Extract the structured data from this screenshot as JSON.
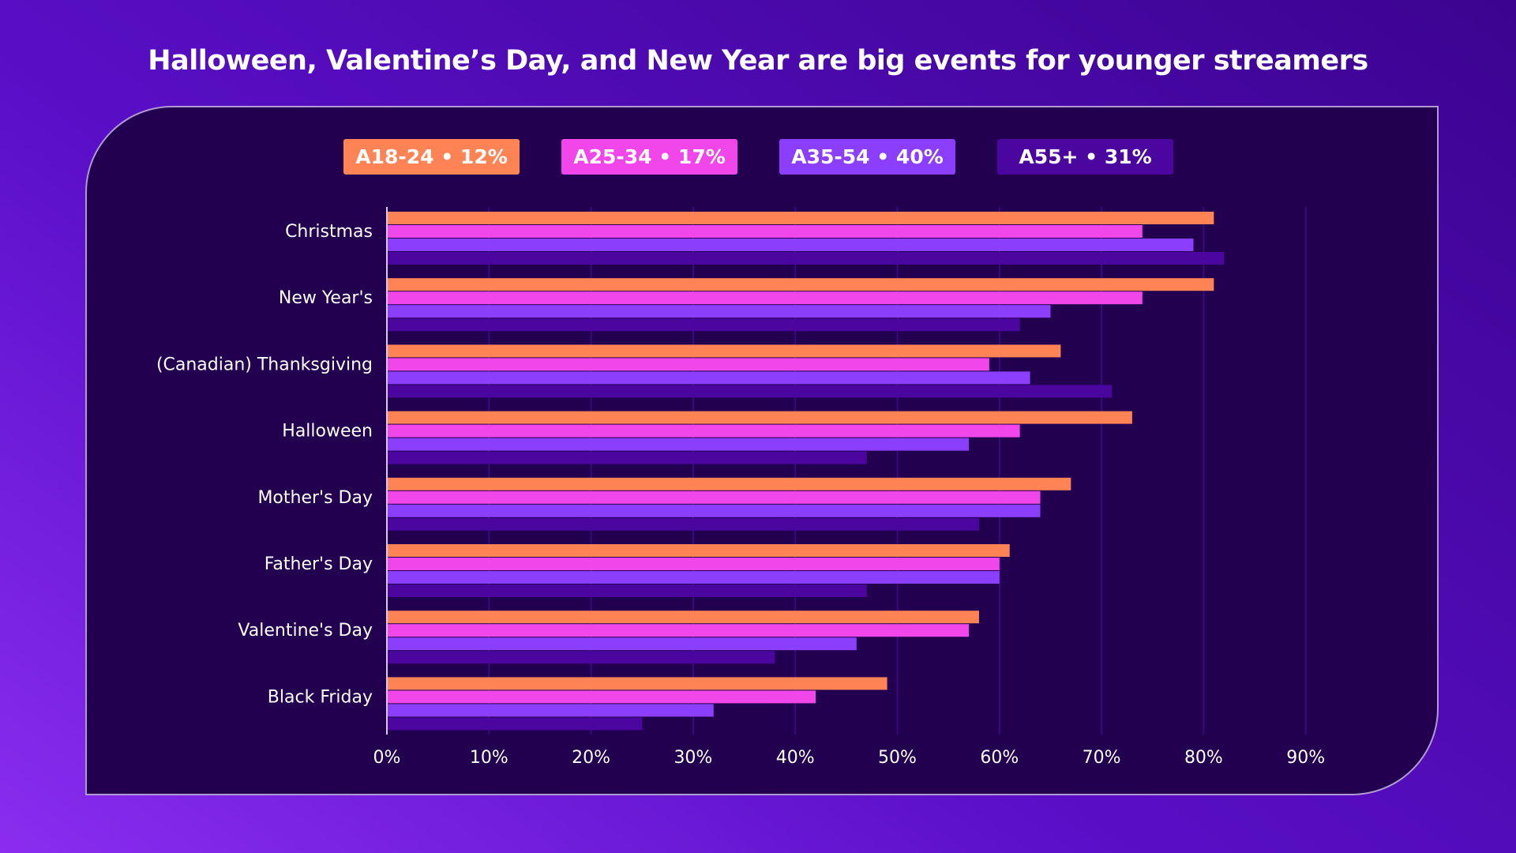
{
  "title": "Halloween, Valentine’s Day, and New Year are big events for younger streamers",
  "legend": [
    {
      "label": "A18-24 • 12%",
      "color": "#ff8355"
    },
    {
      "label": "A25-34 • 17%",
      "color": "#f146e9"
    },
    {
      "label": "A35-54 • 40%",
      "color": "#8b3ffc"
    },
    {
      "label": "A55+ • 31%",
      "color": "#4a069f"
    }
  ],
  "chart_data": {
    "type": "bar",
    "orientation": "horizontal",
    "categories": [
      "Christmas",
      "New Year's",
      "(Canadian) Thanksgiving",
      "Halloween",
      "Mother's Day",
      "Father's Day",
      "Valentine's Day",
      "Black Friday"
    ],
    "series": [
      {
        "name": "A18-24 • 12%",
        "color": "#ff8355",
        "values": [
          81,
          81,
          66,
          73,
          67,
          61,
          58,
          49
        ]
      },
      {
        "name": "A25-34 • 17%",
        "color": "#f146e9",
        "values": [
          74,
          74,
          59,
          62,
          64,
          60,
          57,
          42
        ]
      },
      {
        "name": "A35-54 • 40%",
        "color": "#8b3ffc",
        "values": [
          79,
          65,
          63,
          57,
          64,
          60,
          46,
          32
        ]
      },
      {
        "name": "A55+ • 31%",
        "color": "#4a069f",
        "values": [
          82,
          62,
          71,
          47,
          58,
          47,
          38,
          25
        ]
      }
    ],
    "xlim": [
      0,
      90
    ],
    "xticks": [
      "0%",
      "10%",
      "20%",
      "30%",
      "40%",
      "50%",
      "60%",
      "70%",
      "80%",
      "90%"
    ],
    "xlabel": "",
    "ylabel": "",
    "grid": true,
    "legend_position": "top"
  }
}
